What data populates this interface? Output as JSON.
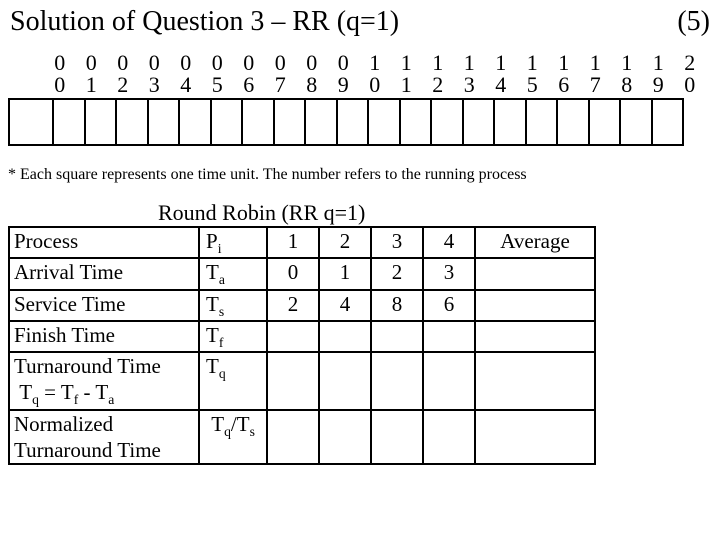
{
  "title": "Solution of Question 3 – RR (q=1)",
  "page_indicator": "(5)",
  "timeline": {
    "top": [
      "0",
      "0",
      "0",
      "0",
      "0",
      "0",
      "0",
      "0",
      "0",
      "0",
      "1",
      "1",
      "1",
      "1",
      "1",
      "1",
      "1",
      "1",
      "1",
      "1",
      "2"
    ],
    "bottom": [
      "0",
      "1",
      "2",
      "3",
      "4",
      "5",
      "6",
      "7",
      "8",
      "9",
      "0",
      "1",
      "2",
      "3",
      "4",
      "5",
      "6",
      "7",
      "8",
      "9",
      "0"
    ],
    "cell_count": 21
  },
  "footnote": "* Each square represents one time unit. The number refers to the running process",
  "table_title": "Round Robin (RR q=1)",
  "table": {
    "avg_label": "Average",
    "rows": [
      {
        "label": "Process",
        "sym_html": "P<span class=\"sub\">i</span>",
        "vals": [
          "1",
          "2",
          "3",
          "4"
        ]
      },
      {
        "label": "Arrival Time",
        "sym_html": "T<span class=\"sub\">a</span>",
        "vals": [
          "0",
          "1",
          "2",
          "3"
        ]
      },
      {
        "label": "Service Time",
        "sym_html": "T<span class=\"sub\">s</span>",
        "vals": [
          "2",
          "4",
          "8",
          "6"
        ]
      },
      {
        "label": "Finish Time",
        "sym_html": "T<span class=\"sub\">f</span>",
        "vals": [
          "",
          "",
          "",
          ""
        ]
      },
      {
        "label_html": "Turnaround Time<br>&nbsp;T<span class=\"sub\">q</span> = T<span class=\"sub\">f</span> - T<span class=\"sub\">a</span>",
        "sym_html": "T<span class=\"sub\">q</span>",
        "vals": [
          "",
          "",
          "",
          ""
        ]
      },
      {
        "label_html": "Normalized<br>Turnaround Time",
        "sym_html": "&nbsp;T<span class=\"sub\">q</span>/T<span class=\"sub\">s</span>",
        "vals": [
          "",
          "",
          "",
          ""
        ]
      }
    ]
  }
}
